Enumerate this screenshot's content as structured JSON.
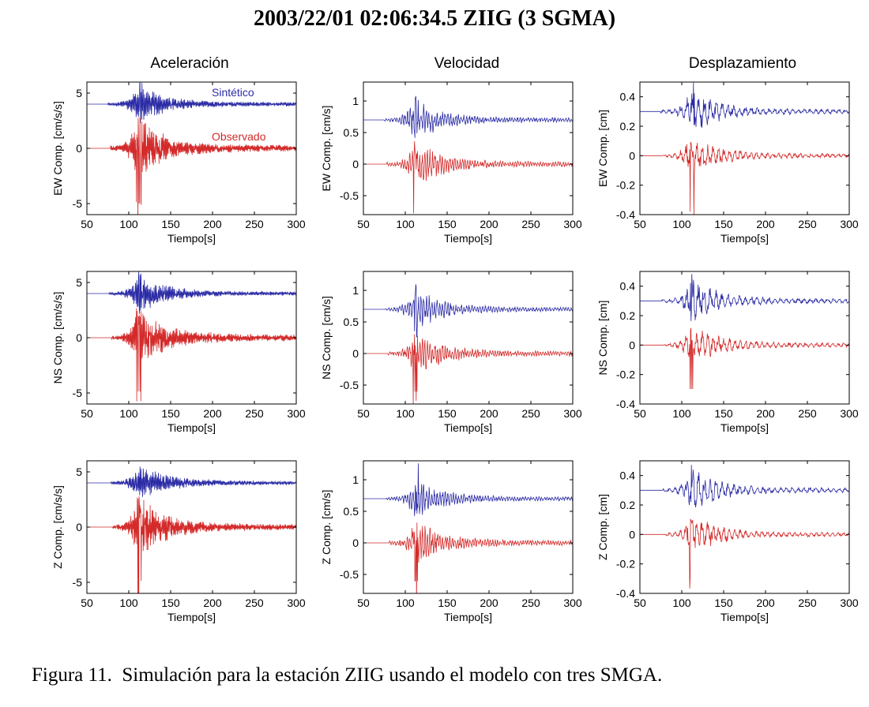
{
  "figure_title": "2003/22/01   02:06:34.5 ZIIG (3 SGMA)",
  "caption": "Figura 11.  Simulación para la estación ZIIG usando el modelo con tres SMGA.",
  "colors": {
    "synthetic": "#2b2ba6",
    "observed": "#d42a2a",
    "axis": "#000000"
  },
  "chart_data": {
    "type": "line",
    "columns": [
      {
        "title": "Aceleración",
        "unit": "cm/s/s",
        "yticks": [
          "5",
          "0",
          "-5"
        ],
        "ylim": [
          -6,
          6
        ],
        "ytick_values": [
          5,
          0,
          -5
        ],
        "synthetic_offset": 4,
        "synthetic_amp": 1.6,
        "observed_amp": 2.6,
        "observed_neg_peak": -6,
        "synthetic_peak": 5.6
      },
      {
        "title": "Velocidad",
        "unit": "cm/s",
        "yticks": [
          "1",
          "0.5",
          "0",
          "-0.5"
        ],
        "ylim": [
          -0.8,
          1.3
        ],
        "ytick_values": [
          1,
          0.5,
          0,
          -0.5
        ],
        "synthetic_offset": 0.7,
        "synthetic_amp": 0.3,
        "observed_amp": 0.35,
        "observed_neg_peak": -0.75,
        "synthetic_peak": 1.05
      },
      {
        "title": "Desplazamiento",
        "unit": "cm",
        "yticks": [
          "0.4",
          "0.2",
          "0",
          "-0.2",
          "-0.4"
        ],
        "ylim": [
          -0.4,
          0.5
        ],
        "ytick_values": [
          0.4,
          0.2,
          0,
          -0.2,
          -0.4
        ],
        "synthetic_offset": 0.3,
        "synthetic_amp": 0.14,
        "observed_amp": 0.13,
        "observed_neg_peak": -0.36,
        "synthetic_peak": 0.48
      }
    ],
    "rows": [
      "EW Comp.",
      "NS Comp.",
      "Z Comp."
    ],
    "xlim": [
      50,
      300
    ],
    "xticks": [
      "50",
      "100",
      "150",
      "200",
      "250",
      "300"
    ],
    "xtick_values": [
      50,
      100,
      150,
      200,
      250,
      300
    ],
    "xlabel": "Tiempo[s]",
    "series": [
      {
        "name": "Sintético",
        "signal_onset_s": 75,
        "peak_time_s": 113
      },
      {
        "name": "Observado",
        "signal_onset_s": 78,
        "peak_time_s": 112
      }
    ],
    "legend": {
      "synthetic": "Sintético",
      "observed": "Observado"
    }
  }
}
